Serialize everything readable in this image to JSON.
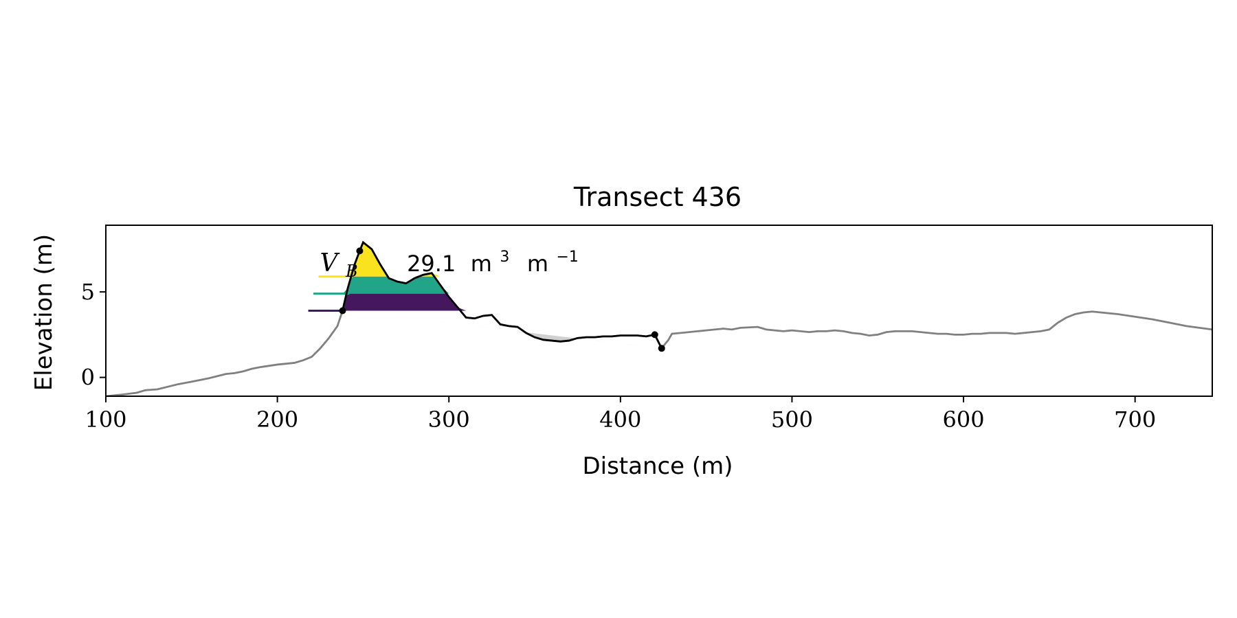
{
  "chart_data": {
    "type": "line",
    "title": "Transect 436",
    "xlabel": "Distance (m)",
    "ylabel": "Elevation (m)",
    "xlim": [
      100,
      745
    ],
    "ylim": [
      -1.1,
      8.9
    ],
    "xticks": [
      {
        "value": 100,
        "label": "100"
      },
      {
        "value": 200,
        "label": "200"
      },
      {
        "value": 300,
        "label": "300"
      },
      {
        "value": 400,
        "label": "400"
      },
      {
        "value": 500,
        "label": "500"
      },
      {
        "value": 600,
        "label": "600"
      },
      {
        "value": 700,
        "label": "700"
      }
    ],
    "yticks": [
      {
        "value": 0,
        "label": "0"
      },
      {
        "value": 5,
        "label": "5"
      }
    ],
    "profile": {
      "color": "#808080",
      "x": [
        100,
        110,
        118,
        123,
        130,
        138,
        142,
        150,
        160,
        170,
        175,
        180,
        185,
        190,
        200,
        210,
        215,
        220,
        225,
        230,
        235,
        238,
        241,
        245,
        248,
        250,
        255,
        260,
        265,
        270,
        275,
        280,
        285,
        290,
        295,
        300,
        305,
        310,
        315,
        320,
        325,
        330,
        335,
        340,
        345,
        350,
        355,
        360,
        365,
        370,
        375,
        380,
        385,
        390,
        395,
        400,
        405,
        410,
        415,
        420,
        424,
        428,
        430,
        435,
        440,
        445,
        450,
        455,
        460,
        465,
        470,
        480,
        485,
        490,
        495,
        500,
        505,
        510,
        515,
        520,
        525,
        530,
        535,
        540,
        545,
        550,
        555,
        560,
        565,
        570,
        575,
        580,
        585,
        590,
        595,
        600,
        605,
        610,
        615,
        620,
        625,
        630,
        635,
        640,
        645,
        650,
        655,
        660,
        665,
        670,
        675,
        680,
        690,
        700,
        710,
        720,
        730,
        745
      ],
      "y": [
        -1.1,
        -1.0,
        -0.9,
        -0.75,
        -0.7,
        -0.5,
        -0.4,
        -0.25,
        -0.05,
        0.2,
        0.25,
        0.35,
        0.5,
        0.6,
        0.75,
        0.85,
        1.0,
        1.2,
        1.7,
        2.3,
        3.0,
        3.9,
        5.2,
        6.6,
        7.4,
        7.9,
        7.5,
        6.6,
        5.8,
        5.6,
        5.5,
        5.8,
        6.0,
        6.1,
        5.4,
        4.7,
        4.1,
        3.5,
        3.45,
        3.6,
        3.65,
        3.1,
        3.0,
        2.95,
        2.6,
        2.35,
        2.2,
        2.15,
        2.1,
        2.15,
        2.3,
        2.35,
        2.35,
        2.4,
        2.4,
        2.45,
        2.45,
        2.45,
        2.4,
        2.5,
        1.7,
        2.2,
        2.55,
        2.6,
        2.65,
        2.7,
        2.75,
        2.8,
        2.85,
        2.8,
        2.9,
        2.95,
        2.8,
        2.75,
        2.7,
        2.75,
        2.7,
        2.65,
        2.7,
        2.7,
        2.75,
        2.7,
        2.6,
        2.55,
        2.45,
        2.5,
        2.65,
        2.7,
        2.7,
        2.7,
        2.65,
        2.6,
        2.55,
        2.55,
        2.5,
        2.5,
        2.55,
        2.55,
        2.6,
        2.6,
        2.6,
        2.55,
        2.6,
        2.65,
        2.7,
        2.8,
        3.2,
        3.5,
        3.7,
        3.8,
        3.85,
        3.8,
        3.7,
        3.55,
        3.4,
        3.2,
        3.0,
        2.8
      ]
    },
    "dune_segment": {
      "color": "#000000",
      "start_x": 238,
      "end_x": 424
    },
    "key_points": [
      {
        "x": 238,
        "y": 3.9
      },
      {
        "x": 248,
        "y": 7.4
      },
      {
        "x": 420,
        "y": 2.5
      },
      {
        "x": 424,
        "y": 1.7
      }
    ],
    "baseline": {
      "from": {
        "x": 238,
        "y": 3.9
      },
      "to": {
        "x": 424,
        "y": 1.7
      },
      "fill_color": "#d0d0d0"
    },
    "volume_bands": [
      {
        "lower": 3.9,
        "upper": 4.9,
        "color": "#45175e",
        "marker_x": [
          218,
          238
        ]
      },
      {
        "lower": 4.9,
        "upper": 5.9,
        "color": "#22a488",
        "marker_x": [
          221,
          242
        ]
      },
      {
        "lower": 5.9,
        "upper": 7.95,
        "color": "#f8e31e",
        "marker_x": [
          224,
          244
        ]
      }
    ],
    "annotation": {
      "symbol": "V",
      "subscript": "B",
      "value": "29.1",
      "unit_base": "m",
      "unit_exp": "3",
      "unit_base2": "m",
      "unit_exp2": "−1",
      "x": 224,
      "y": 6.2
    }
  }
}
